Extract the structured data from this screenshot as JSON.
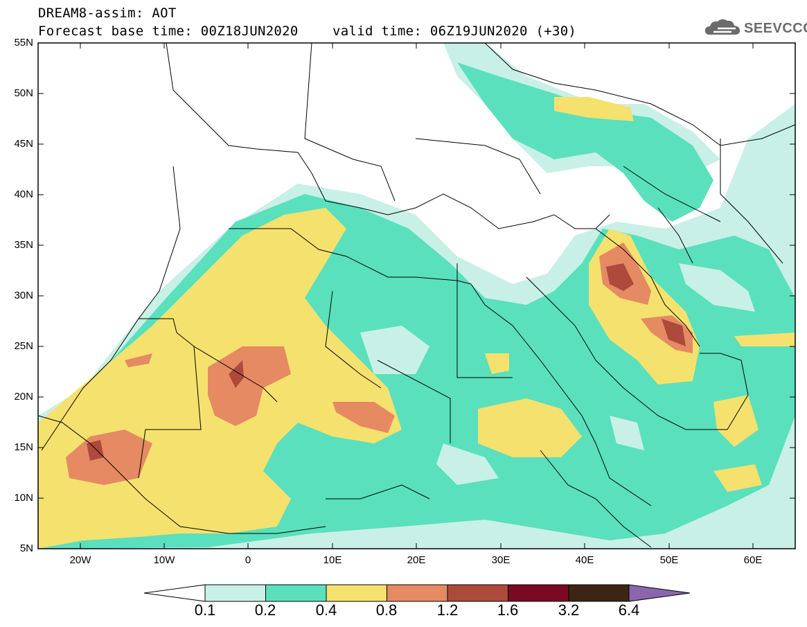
{
  "header": {
    "title_line1": "DREAM8-assim: AOT",
    "title_line2": "Forecast base time: 00Z18JUN2020",
    "valid_time": "valid time: 06Z19JUN2020 (+30)",
    "logo_text": "SEEVCCC"
  },
  "map": {
    "lat_labels": [
      "55N",
      "50N",
      "45N",
      "40N",
      "35N",
      "30N",
      "25N",
      "20N",
      "15N",
      "10N",
      "5N"
    ],
    "lon_labels": [
      "20W",
      "10W",
      "0",
      "10E",
      "20E",
      "30E",
      "40E",
      "50E",
      "60E"
    ],
    "lat_range": [
      5,
      55
    ],
    "lon_range": [
      -25,
      65
    ],
    "variable": "AOT"
  },
  "colorbar": {
    "levels": [
      "0.1",
      "0.2",
      "0.4",
      "0.8",
      "1.2",
      "1.6",
      "3.2",
      "6.4"
    ],
    "colors": [
      "#c8f0e6",
      "#5ae0bd",
      "#f5e16e",
      "#e58a62",
      "#ad4a3c",
      "#7a0a24",
      "#3c2514",
      "#8a67ad"
    ]
  },
  "palette": {
    "c1": "#c8f0e6",
    "c2": "#5ae0bd",
    "c3": "#f5e16e",
    "c4": "#e58a62",
    "c5": "#ad4a3c",
    "c6": "#7a0a24"
  }
}
